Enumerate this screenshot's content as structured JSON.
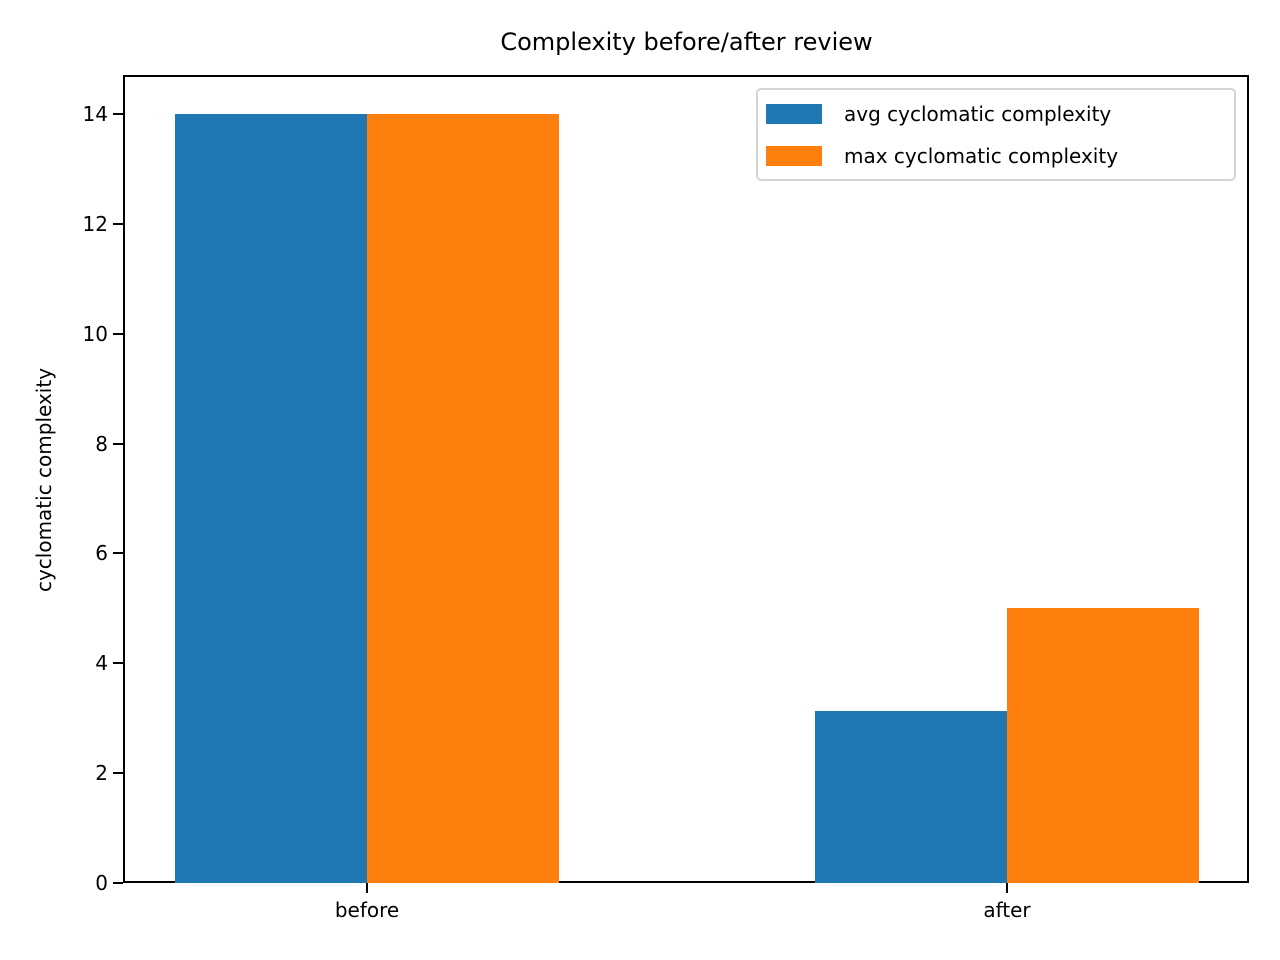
{
  "chart_data": {
    "type": "bar",
    "title": "Complexity before/after review",
    "xlabel": "",
    "ylabel": "cyclomatic complexity",
    "categories": [
      "before",
      "after"
    ],
    "series": [
      {
        "name": "avg cyclomatic complexity",
        "color": "#1f77b4",
        "values": [
          14,
          3.13
        ]
      },
      {
        "name": "max cyclomatic complexity",
        "color": "#ff7f0e",
        "values": [
          14,
          5
        ]
      }
    ],
    "ylim": [
      0,
      14.7
    ],
    "yticks": [
      0,
      2,
      4,
      6,
      8,
      10,
      12,
      14
    ],
    "grid": false,
    "legend_position": "upper right"
  },
  "labels": {
    "title": "Complexity before/after review",
    "ylabel": "cyclomatic complexity",
    "yticks": [
      "0",
      "2",
      "4",
      "6",
      "8",
      "10",
      "12",
      "14"
    ],
    "xticks": [
      "before",
      "after"
    ],
    "legend": [
      "avg cyclomatic complexity",
      "max cyclomatic complexity"
    ]
  }
}
